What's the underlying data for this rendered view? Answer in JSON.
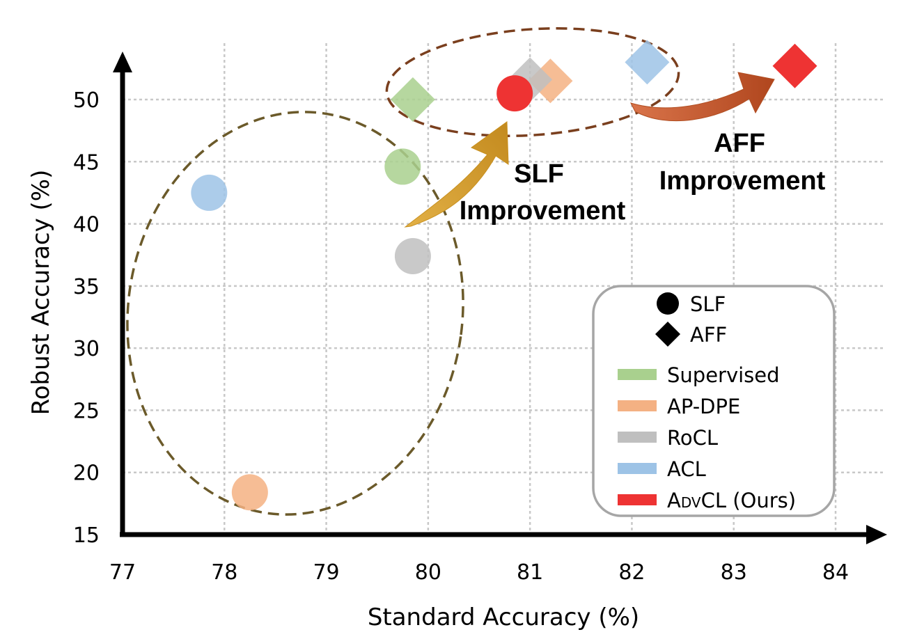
{
  "chart_data": {
    "type": "scatter",
    "xlabel": "Standard Accuracy (%)",
    "ylabel": "Robust Accuracy (%)",
    "xlim": [
      77,
      84
    ],
    "ylim": [
      15,
      53
    ],
    "xticks": [
      "77",
      "78",
      "79",
      "80",
      "81",
      "82",
      "83",
      "84"
    ],
    "yticks": [
      "15",
      "20",
      "25",
      "30",
      "35",
      "40",
      "45",
      "50"
    ],
    "grid": true,
    "legend_position": "bottom-right",
    "shape_legend": [
      {
        "shape": "circle",
        "label": "SLF"
      },
      {
        "shape": "diamond",
        "label": "AFF"
      }
    ],
    "series": [
      {
        "name": "Supervised",
        "color": "#a9d08e",
        "points": [
          {
            "x": 79.75,
            "y": 44.6,
            "shape": "circle"
          },
          {
            "x": 79.85,
            "y": 50.0,
            "shape": "diamond"
          }
        ]
      },
      {
        "name": "AP-DPE",
        "color": "#f4b183",
        "points": [
          {
            "x": 78.25,
            "y": 18.4,
            "shape": "circle"
          },
          {
            "x": 81.2,
            "y": 51.5,
            "shape": "diamond"
          }
        ]
      },
      {
        "name": "RoCL",
        "color": "#bfbfbf",
        "points": [
          {
            "x": 79.85,
            "y": 37.4,
            "shape": "circle"
          },
          {
            "x": 81.0,
            "y": 51.6,
            "shape": "diamond"
          }
        ]
      },
      {
        "name": "ACL",
        "color": "#9dc3e6",
        "points": [
          {
            "x": 77.85,
            "y": 42.5,
            "shape": "circle"
          },
          {
            "x": 82.15,
            "y": 53.0,
            "shape": "diamond"
          }
        ]
      },
      {
        "name": "ADVCL (Ours)",
        "color": "#ee3333",
        "points": [
          {
            "x": 80.85,
            "y": 50.5,
            "shape": "circle"
          },
          {
            "x": 83.6,
            "y": 52.7,
            "shape": "diamond"
          }
        ]
      }
    ],
    "legend_ours": {
      "cap1": "A",
      "sc": "DV",
      "rest": "CL (Ours)"
    },
    "annotations": [
      {
        "line1": "SLF",
        "line2": "Improvement"
      },
      {
        "line1": "AFF",
        "line2": "Improvement"
      }
    ]
  }
}
